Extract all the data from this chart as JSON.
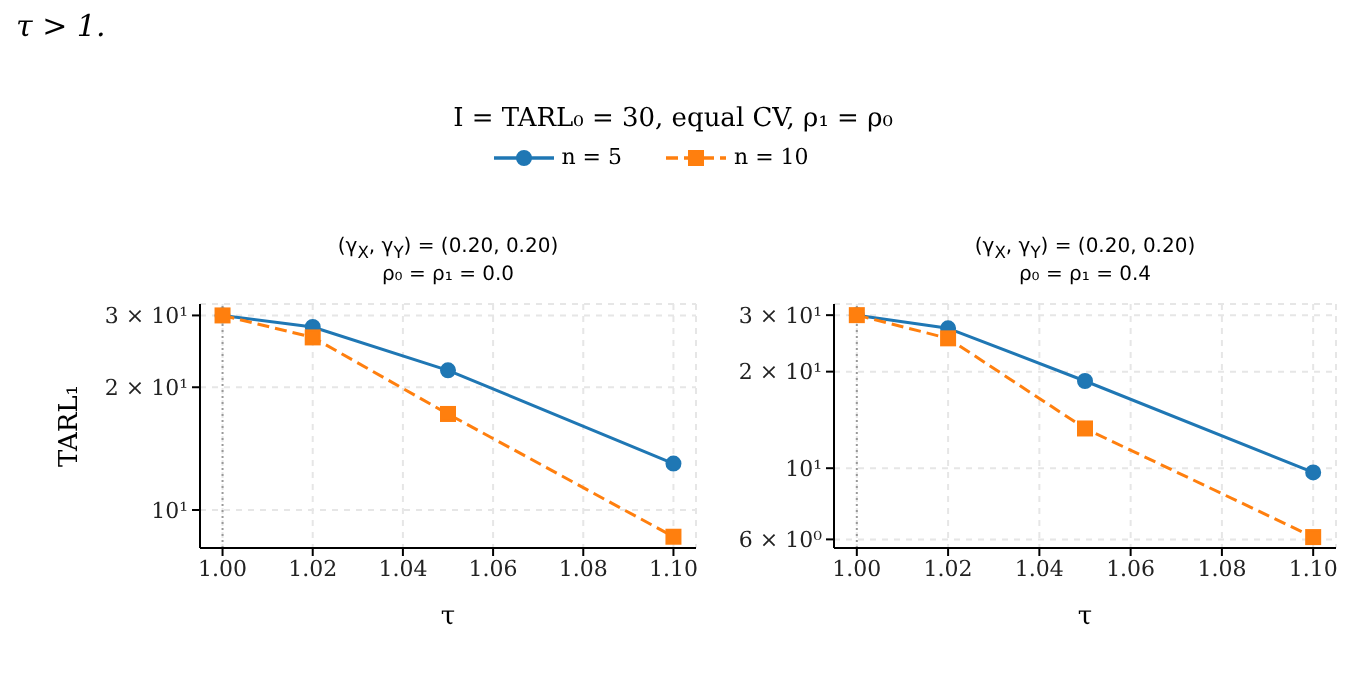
{
  "chart_data": [
    {
      "type": "line",
      "title": "(γ$_{X}$, γ$_{Y}$) = (0.20, 0.20)",
      "subtitle": "ρ₀ = ρ₁ = 0.0",
      "xlabel": "τ",
      "ylabel": "TARL₁",
      "annotations": [
        "τ > 1.",
        "I = TARL₀ = 30, equal CV, ρ₁ = ρ₀"
      ],
      "x": [
        1.0,
        1.02,
        1.05,
        1.1
      ],
      "series": [
        {
          "name": "n = 5",
          "color": "#1f77b4",
          "values": [
            30,
            28.1,
            22.0,
            13.0
          ],
          "marker": "circle",
          "line_style": "solid"
        },
        {
          "name": "n = 10",
          "color": "#ff7f0e",
          "values": [
            30,
            26.5,
            17.2,
            8.6
          ],
          "marker": "square",
          "line_style": "dashed"
        }
      ],
      "xlim": [
        0.995,
        1.105
      ],
      "xticks": [
        {
          "value": 1.0,
          "label": "1.00"
        },
        {
          "value": 1.02,
          "label": "1.02"
        },
        {
          "value": 1.04,
          "label": "1.04"
        },
        {
          "value": 1.06,
          "label": "1.06"
        },
        {
          "value": 1.08,
          "label": "1.08"
        },
        {
          "value": 1.1,
          "label": "1.10"
        }
      ],
      "ylim": [
        8.07,
        32
      ],
      "yticks": [
        {
          "value": 10,
          "label": "10¹"
        },
        {
          "value": 20,
          "label": "2 × 10¹"
        },
        {
          "value": 30,
          "label": "3 × 10¹"
        }
      ],
      "log": "y",
      "grid": true,
      "legend": "top",
      "ref_lines": [
        {
          "axis": "x",
          "value": 1.0,
          "color": "#999999",
          "line_style": "dotted"
        }
      ]
    },
    {
      "type": "line",
      "title": "(γ$_{X}$, γ$_{Y}$) = (0.20, 0.20)",
      "subtitle": "ρ₀ = ρ₁ = 0.4",
      "xlabel": "τ",
      "x": [
        1.0,
        1.02,
        1.05,
        1.1
      ],
      "series": [
        {
          "name": "n = 5",
          "color": "#1f77b4",
          "values": [
            30,
            27.3,
            18.7,
            9.7
          ],
          "marker": "circle",
          "line_style": "solid"
        },
        {
          "name": "n = 10",
          "color": "#ff7f0e",
          "values": [
            30,
            25.4,
            13.3,
            6.1
          ],
          "marker": "square",
          "line_style": "dashed"
        }
      ],
      "xlim": [
        0.995,
        1.105
      ],
      "xticks": [
        {
          "value": 1.0,
          "label": "1.00"
        },
        {
          "value": 1.02,
          "label": "1.02"
        },
        {
          "value": 1.04,
          "label": "1.04"
        },
        {
          "value": 1.06,
          "label": "1.06"
        },
        {
          "value": 1.08,
          "label": "1.08"
        },
        {
          "value": 1.1,
          "label": "1.10"
        }
      ],
      "ylim": [
        5.64,
        32.5
      ],
      "yticks": [
        {
          "value": 6,
          "label": "6 × 10⁰"
        },
        {
          "value": 10,
          "label": "10¹"
        },
        {
          "value": 20,
          "label": "2 × 10¹"
        },
        {
          "value": 30,
          "label": "3 × 10¹"
        }
      ],
      "log": "y",
      "grid": true,
      "ref_lines": [
        {
          "axis": "x",
          "value": 1.0,
          "color": "#999999",
          "line_style": "dotted"
        }
      ]
    }
  ]
}
